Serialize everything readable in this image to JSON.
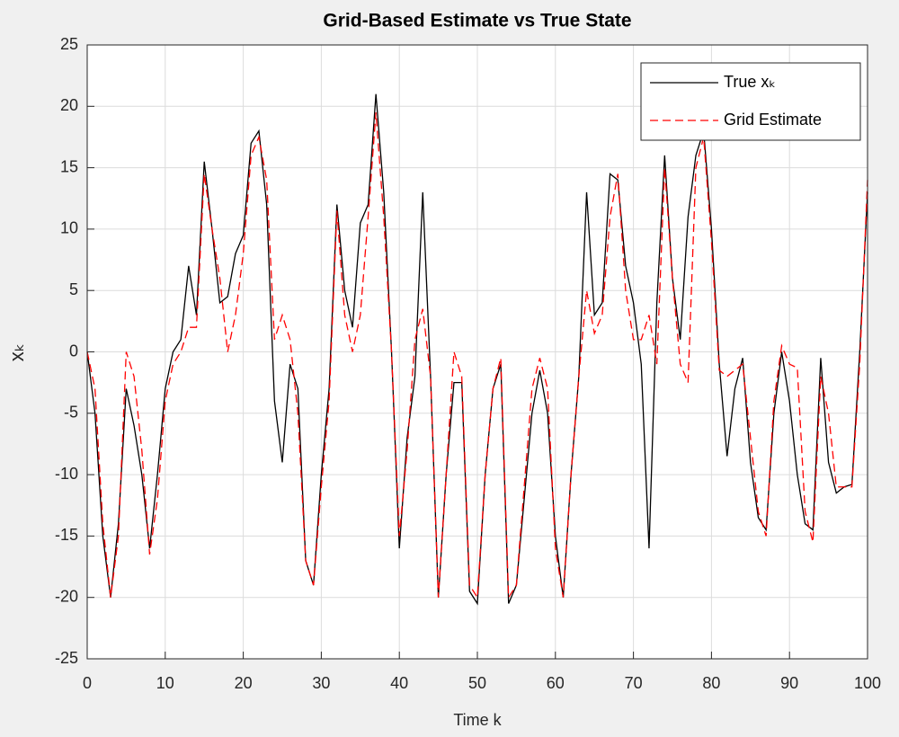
{
  "chart_data": {
    "type": "line",
    "title": "Grid-Based Estimate vs True State",
    "xlabel": "Time k",
    "ylabel": "xₖ",
    "x": [
      0,
      1,
      2,
      3,
      4,
      5,
      6,
      7,
      8,
      9,
      10,
      11,
      12,
      13,
      14,
      15,
      16,
      17,
      18,
      19,
      20,
      21,
      22,
      23,
      24,
      25,
      26,
      27,
      28,
      29,
      30,
      31,
      32,
      33,
      34,
      35,
      36,
      37,
      38,
      39,
      40,
      41,
      42,
      43,
      44,
      45,
      46,
      47,
      48,
      49,
      50,
      51,
      52,
      53,
      54,
      55,
      56,
      57,
      58,
      59,
      60,
      61,
      62,
      63,
      64,
      65,
      66,
      67,
      68,
      69,
      70,
      71,
      72,
      73,
      74,
      75,
      76,
      77,
      78,
      79,
      80,
      81,
      82,
      83,
      84,
      85,
      86,
      87,
      88,
      89,
      90,
      91,
      92,
      93,
      94,
      95,
      96,
      97,
      98,
      99,
      100
    ],
    "series": [
      {
        "name": "True xₖ",
        "color": "#000000",
        "dash": "solid",
        "values": [
          0,
          -5,
          -15,
          -20,
          -14,
          -3,
          -6,
          -10,
          -16,
          -10,
          -3,
          0,
          1,
          7,
          3,
          15.5,
          10,
          4,
          4.5,
          8,
          9.5,
          17,
          18,
          12,
          -4,
          -9,
          -1,
          -3,
          -17,
          -19,
          -10,
          -3,
          12,
          5,
          2,
          10.5,
          12,
          21,
          13,
          0,
          -16,
          -7,
          -2,
          13,
          -2,
          -20,
          -10,
          -2.5,
          -2.5,
          -19.5,
          -20.5,
          -10,
          -3,
          -1,
          -20.5,
          -19,
          -12,
          -5,
          -1.5,
          -5,
          -15,
          -20,
          -10,
          -2,
          13,
          3,
          4,
          14.5,
          14,
          7,
          4,
          -1,
          -16,
          4,
          16,
          6,
          1,
          11,
          16,
          18,
          10,
          -1,
          -8.5,
          -3,
          -0.5,
          -9,
          -13.5,
          -14.5,
          -5,
          0,
          -4,
          -10,
          -14,
          -14.5,
          -0.5,
          -9,
          -11.5,
          -11,
          -10.8,
          0,
          13
        ]
      },
      {
        "name": "Grid Estimate",
        "color": "#ff0000",
        "dash": "dashed",
        "values": [
          0,
          -3,
          -14,
          -20,
          -15,
          0,
          -2,
          -8,
          -16.5,
          -12,
          -4,
          -1,
          0,
          2,
          2,
          14.5,
          10,
          6,
          0,
          3,
          8,
          16,
          17.5,
          14,
          1,
          3,
          1,
          -5,
          -17,
          -19,
          -11,
          -4,
          11.5,
          3,
          0,
          3,
          11,
          19.5,
          11,
          0,
          -15,
          -8,
          1,
          3.5,
          -2,
          -20,
          -10,
          0,
          -2,
          -19,
          -20,
          -10,
          -3,
          -0.5,
          -20,
          -19,
          -11,
          -3,
          -0.5,
          -3,
          -16,
          -20,
          -10,
          -2,
          5,
          1.5,
          3,
          11,
          14.5,
          5,
          1,
          1,
          3,
          -1,
          15,
          6,
          -1,
          -2.5,
          15,
          17.5,
          9,
          -1.5,
          -2,
          -1.5,
          -1,
          -7,
          -13,
          -15,
          -4,
          0.5,
          -1,
          -1.3,
          -13,
          -15.5,
          -2,
          -5,
          -11,
          -11,
          -11,
          -1,
          14
        ]
      }
    ],
    "xlim": [
      0,
      100
    ],
    "ylim": [
      -25,
      25
    ],
    "xticks": [
      0,
      10,
      20,
      30,
      40,
      50,
      60,
      70,
      80,
      90,
      100
    ],
    "yticks": [
      -25,
      -20,
      -15,
      -10,
      -5,
      0,
      5,
      10,
      15,
      20,
      25
    ],
    "grid": true,
    "legend": "northeast"
  }
}
